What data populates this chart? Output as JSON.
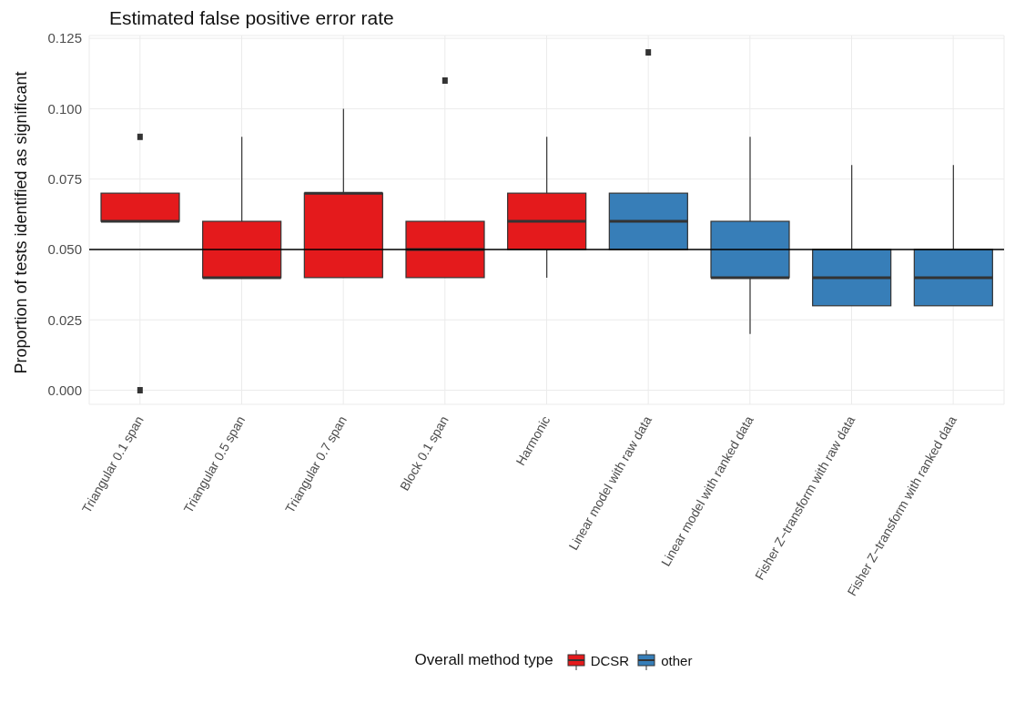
{
  "chart_data": {
    "type": "box",
    "title": "Estimated false positive error rate",
    "ylabel": "Proportion of tests identified as significant",
    "legend_title": "Overall method type",
    "legend": "bottom",
    "grid": true,
    "categories": [
      "Triangular 0.1 span",
      "Triangular 0.5 span",
      "Triangular 0.7 span",
      "Block 0.1 span",
      "Harmonic",
      "Linear model with raw data",
      "Linear model with ranked data",
      "Fisher Z−transform with raw data",
      "Fisher Z−transform with ranked data"
    ],
    "ylim": [
      -0.005,
      0.126
    ],
    "yticks": [
      {
        "value": 0,
        "label": "0.000"
      },
      {
        "value": 0.025,
        "label": "0.025"
      },
      {
        "value": 0.05,
        "label": "0.050"
      },
      {
        "value": 0.075,
        "label": "0.075"
      },
      {
        "value": 0.1,
        "label": "0.100"
      },
      {
        "value": 0.125,
        "label": "0.125"
      }
    ],
    "ref_lines": [
      {
        "axis": "y",
        "value": 0.05,
        "color": "#000000"
      }
    ],
    "series": [
      {
        "name": "DCSR",
        "color": "#e41a1c",
        "boxes": [
          {
            "low": 0.06,
            "q1": 0.06,
            "median": 0.06,
            "q3": 0.07,
            "high": 0.07,
            "outliers": [
              0.09,
              0
            ]
          },
          {
            "low": 0.04,
            "q1": 0.04,
            "median": 0.04,
            "q3": 0.06,
            "high": 0.09
          },
          {
            "low": 0.04,
            "q1": 0.04,
            "median": 0.07,
            "q3": 0.07,
            "high": 0.1
          },
          {
            "low": 0.04,
            "q1": 0.04,
            "median": 0.05,
            "q3": 0.06,
            "high": 0.06,
            "outliers": [
              0.11
            ]
          },
          {
            "low": 0.04,
            "q1": 0.05,
            "median": 0.06,
            "q3": 0.07,
            "high": 0.09
          },
          null,
          null,
          null,
          null
        ]
      },
      {
        "name": "other",
        "color": "#377eb8",
        "boxes": [
          null,
          null,
          null,
          null,
          null,
          {
            "low": 0.05,
            "q1": 0.05,
            "median": 0.06,
            "q3": 0.07,
            "high": 0.07,
            "outliers": [
              0.12
            ]
          },
          {
            "low": 0.02,
            "q1": 0.04,
            "median": 0.04,
            "q3": 0.06,
            "high": 0.09
          },
          {
            "low": 0.03,
            "q1": 0.03,
            "median": 0.04,
            "q3": 0.05,
            "high": 0.08
          },
          {
            "low": 0.03,
            "q1": 0.03,
            "median": 0.04,
            "q3": 0.05,
            "high": 0.08
          }
        ]
      }
    ]
  }
}
